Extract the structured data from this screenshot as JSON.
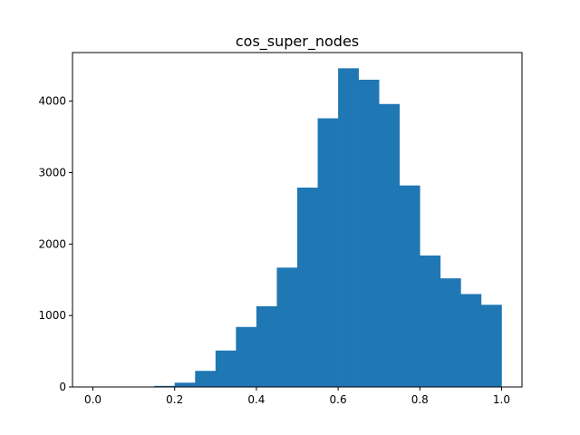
{
  "chart_data": {
    "type": "bar",
    "title": "cos_super_nodes",
    "xlabel": "",
    "ylabel": "",
    "bin_edges": [
      0.0,
      0.05,
      0.1,
      0.15,
      0.2,
      0.25,
      0.3,
      0.35,
      0.4,
      0.45,
      0.5,
      0.55,
      0.6,
      0.65,
      0.7,
      0.75,
      0.8,
      0.85,
      0.9,
      0.95,
      1.0
    ],
    "counts": [
      0,
      0,
      0,
      15,
      60,
      225,
      510,
      840,
      1130,
      1670,
      2790,
      3760,
      4460,
      4300,
      3960,
      2820,
      1840,
      1520,
      1300,
      1150
    ],
    "xlim": [
      -0.05,
      1.05
    ],
    "ylim": [
      0,
      4680
    ],
    "xticks": [
      0.0,
      0.2,
      0.4,
      0.6,
      0.8,
      1.0
    ],
    "xtick_labels": [
      "0.0",
      "0.2",
      "0.4",
      "0.6",
      "0.8",
      "1.0"
    ],
    "yticks": [
      0,
      1000,
      2000,
      3000,
      4000
    ],
    "ytick_labels": [
      "0",
      "1000",
      "2000",
      "3000",
      "4000"
    ],
    "bar_color": "#1f77b4",
    "grid": false,
    "legend": "none"
  }
}
